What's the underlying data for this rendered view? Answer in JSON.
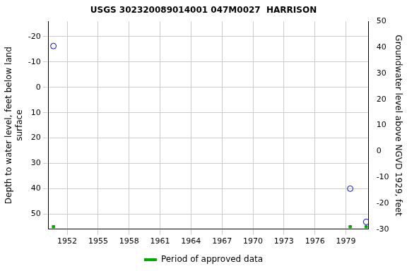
{
  "chart_data": {
    "type": "scatter",
    "title": "USGS 302320089014001 047M0027  HARRISON",
    "ylabel": [
      "Depth to water level, feet below land",
      "surface"
    ],
    "y2label": "Groundwater level above NGVD 1929, feet",
    "x": [
      1950.67,
      1979.42,
      1980.97
    ],
    "series": [
      {
        "color": "#0000cc",
        "marker": "circle_open",
        "values": [
          -16.3,
          40.0,
          53.1
        ]
      },
      {
        "name": "Period of approved data",
        "color": "#00aa00",
        "marker": "square",
        "values": [
          55,
          55,
          55
        ]
      }
    ],
    "xlim": [
      1950.2,
      1981.2
    ],
    "xticks": [
      1952,
      1955,
      1958,
      1961,
      1964,
      1967,
      1970,
      1973,
      1976,
      1979
    ],
    "ylim": [
      56,
      -26
    ],
    "yticks": [
      -20,
      -10,
      0,
      10,
      20,
      30,
      40,
      50
    ],
    "y2lim": [
      -30,
      50
    ],
    "y2ticks": [
      -30,
      -20,
      -10,
      0,
      10,
      20,
      30,
      40,
      50
    ],
    "grid": true,
    "legend": "bottom"
  }
}
